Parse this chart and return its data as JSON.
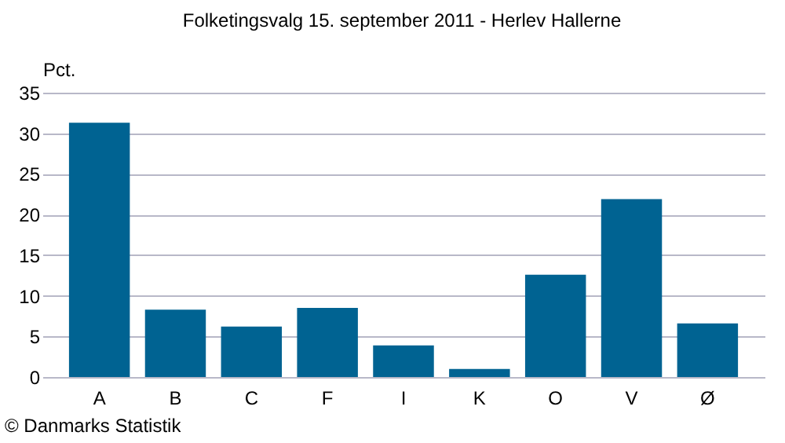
{
  "chart_data": {
    "type": "bar",
    "title": "Folketingsvalg 15. september 2011 - Herlev Hallerne",
    "ylabel": "Pct.",
    "categories": [
      "A",
      "B",
      "C",
      "F",
      "I",
      "K",
      "O",
      "V",
      "Ø"
    ],
    "values": [
      31.3,
      8.3,
      6.2,
      8.5,
      3.9,
      1.0,
      12.6,
      21.9,
      6.6
    ],
    "color": "#006392",
    "ylim": [
      0,
      35
    ],
    "yticks": [
      0,
      5,
      10,
      15,
      20,
      25,
      30,
      35
    ],
    "grid": "y",
    "annotations": [
      "© Danmarks Statistik"
    ]
  }
}
